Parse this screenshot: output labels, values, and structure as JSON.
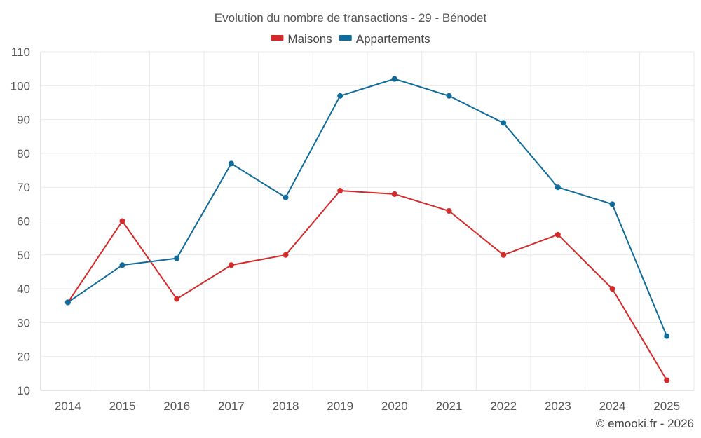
{
  "chart_data": {
    "type": "line",
    "title": "Evolution du nombre de transactions - 29 - Bénodet",
    "categories": [
      "2014",
      "2015",
      "2016",
      "2017",
      "2018",
      "2019",
      "2020",
      "2021",
      "2022",
      "2023",
      "2024",
      "2025"
    ],
    "series": [
      {
        "name": "Maisons",
        "color": "#d32b2b",
        "values": [
          36,
          60,
          37,
          47,
          50,
          69,
          68,
          63,
          50,
          56,
          40,
          13
        ]
      },
      {
        "name": "Appartements",
        "color": "#0f6b9a",
        "values": [
          36,
          47,
          49,
          77,
          67,
          97,
          102,
          97,
          89,
          70,
          65,
          26
        ]
      }
    ],
    "y_ticks": [
      "10",
      "20",
      "30",
      "40",
      "50",
      "60",
      "70",
      "80",
      "90",
      "100",
      "110"
    ],
    "ylim": [
      10,
      110
    ],
    "xlabel": "",
    "ylabel": "",
    "grid": true,
    "legend_position": "top-center"
  },
  "credit": "© emooki.fr - 2026"
}
